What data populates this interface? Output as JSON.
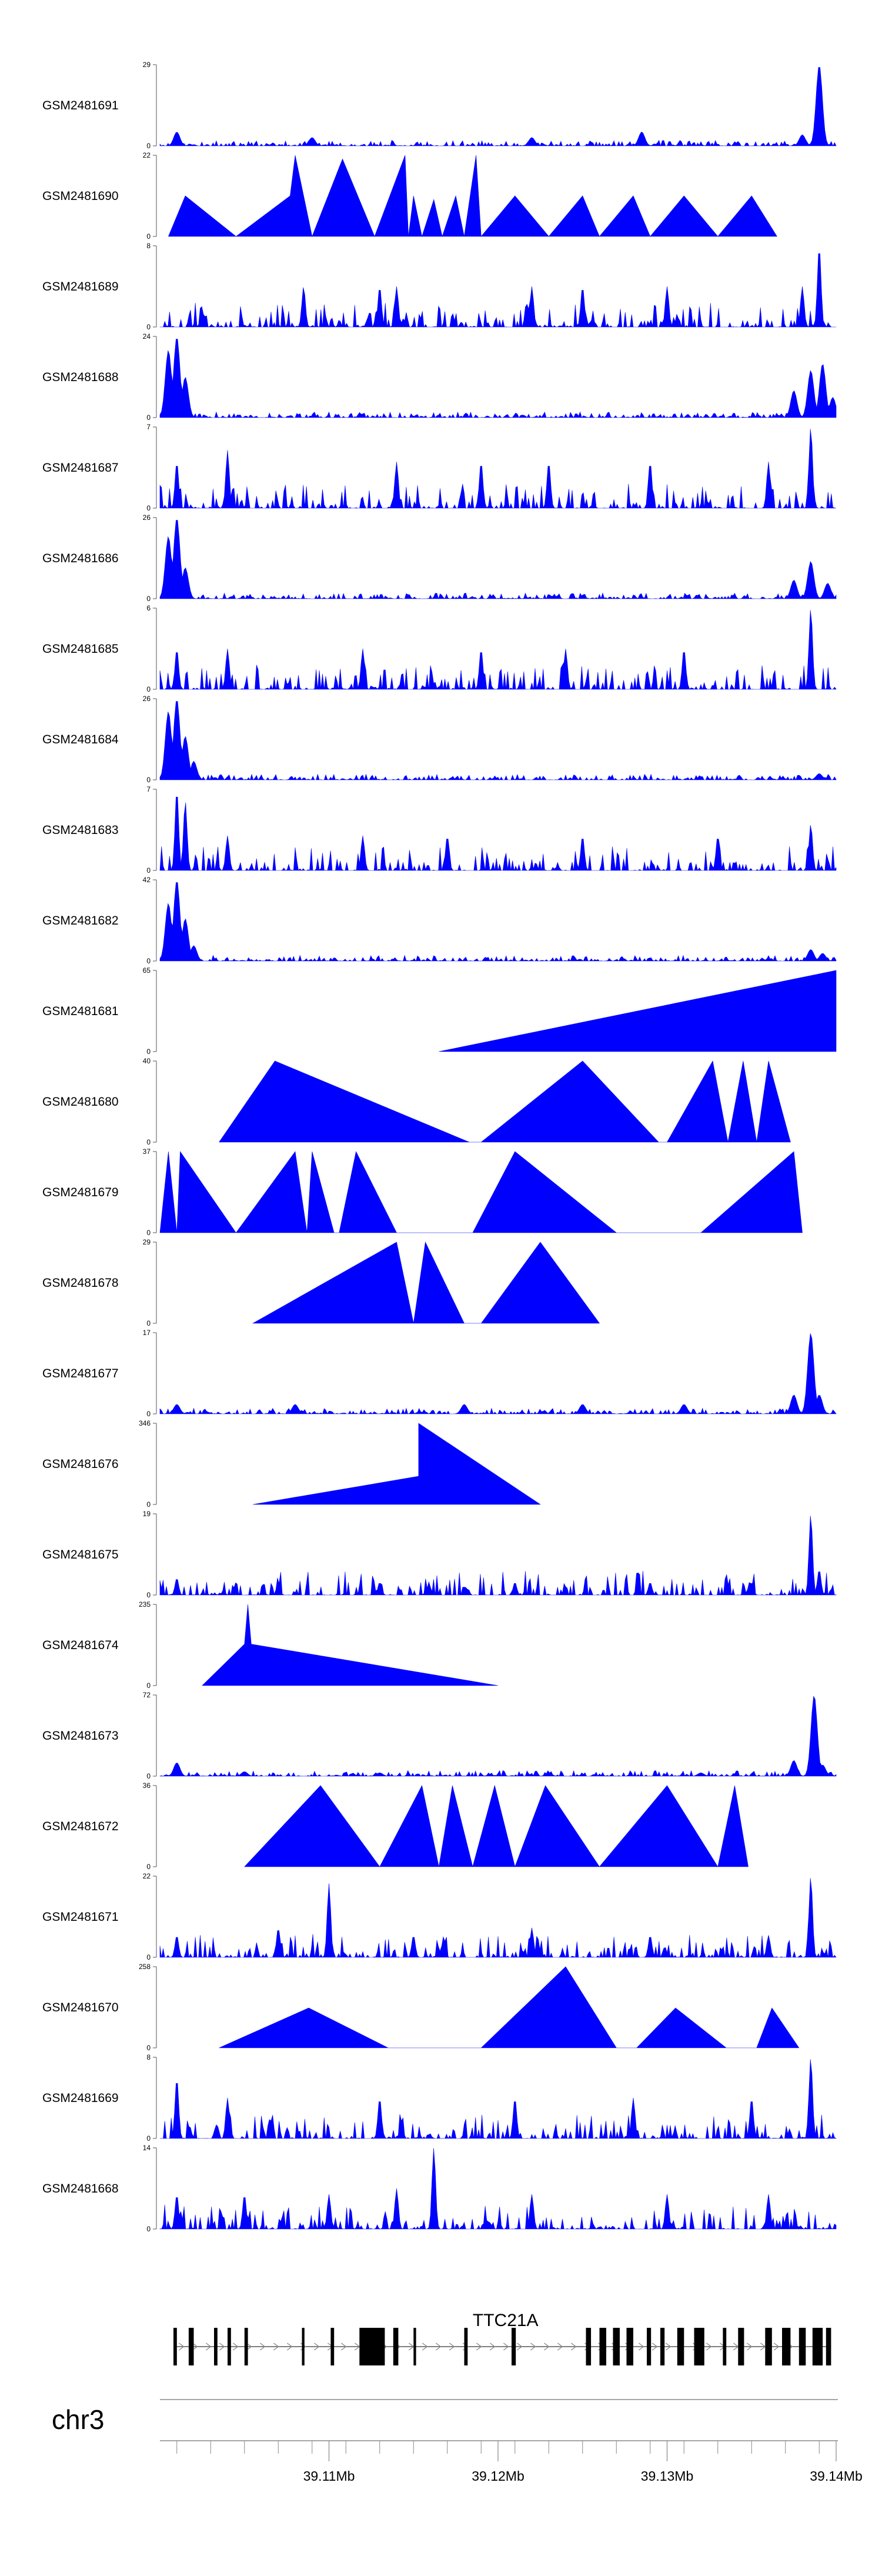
{
  "chart_data": {
    "type": "area",
    "layout": "stacked genome browser tracks",
    "fill_color": "#0000ff",
    "x_axis": {
      "chromosome": "chr3",
      "range": [
        39100000,
        39140000
      ],
      "ticks": [
        {
          "pos": 39110000,
          "label": "39.11Mb"
        },
        {
          "pos": 39120000,
          "label": "39.12Mb"
        },
        {
          "pos": 39130000,
          "label": "39.13Mb"
        },
        {
          "pos": 39140000,
          "label": "39.14Mb"
        }
      ]
    },
    "tracks": [
      {
        "name": "GSM2481691",
        "ymax": 29,
        "profile": "bump",
        "peaks": [
          [
            39101000,
            5
          ],
          [
            39109000,
            3
          ],
          [
            39122000,
            3
          ],
          [
            39128500,
            5
          ],
          [
            39138000,
            4
          ],
          [
            39139000,
            29
          ]
        ]
      },
      {
        "name": "GSM2481690",
        "ymax": 22,
        "profile": "triangles",
        "peaks": [
          [
            39100500,
            0
          ],
          [
            39101500,
            11
          ],
          [
            39104500,
            0
          ],
          [
            39107700,
            11
          ],
          [
            39108000,
            22
          ],
          [
            39109000,
            0
          ],
          [
            39110800,
            21
          ],
          [
            39112700,
            0
          ],
          [
            39114500,
            22
          ],
          [
            39114700,
            0
          ],
          [
            39115000,
            11
          ],
          [
            39115500,
            0
          ],
          [
            39116200,
            10
          ],
          [
            39116700,
            0
          ],
          [
            39117500,
            11
          ],
          [
            39118000,
            0
          ],
          [
            39118700,
            22
          ],
          [
            39119000,
            0
          ],
          [
            39121000,
            11
          ],
          [
            39123000,
            0
          ],
          [
            39125000,
            11
          ],
          [
            39126000,
            0
          ],
          [
            39128000,
            11
          ],
          [
            39129000,
            0
          ],
          [
            39131000,
            11
          ],
          [
            39133000,
            0
          ],
          [
            39135000,
            11
          ],
          [
            39136500,
            0
          ]
        ]
      },
      {
        "name": "GSM2481689",
        "ymax": 8,
        "profile": "spiky",
        "peaks": [
          [
            39108500,
            4
          ],
          [
            39113000,
            4
          ],
          [
            39114000,
            4
          ],
          [
            39122000,
            4
          ],
          [
            39125000,
            4
          ],
          [
            39130000,
            4
          ],
          [
            39138000,
            4
          ],
          [
            39139000,
            8
          ]
        ]
      },
      {
        "name": "GSM2481688",
        "ymax": 24,
        "profile": "bump",
        "peaks": [
          [
            39100500,
            20
          ],
          [
            39101000,
            24
          ],
          [
            39101500,
            12
          ],
          [
            39137500,
            8
          ],
          [
            39138500,
            14
          ],
          [
            39139200,
            16
          ],
          [
            39139800,
            6
          ]
        ]
      },
      {
        "name": "GSM2481687",
        "ymax": 7,
        "profile": "spiky",
        "peaks": [
          [
            39101000,
            4
          ],
          [
            39104000,
            5
          ],
          [
            39114000,
            4
          ],
          [
            39119000,
            4
          ],
          [
            39123000,
            4
          ],
          [
            39129000,
            4
          ],
          [
            39136000,
            4
          ],
          [
            39138500,
            7
          ]
        ]
      },
      {
        "name": "GSM2481686",
        "ymax": 26,
        "profile": "bump",
        "peaks": [
          [
            39100500,
            20
          ],
          [
            39101000,
            26
          ],
          [
            39101500,
            10
          ],
          [
            39137500,
            6
          ],
          [
            39138500,
            12
          ],
          [
            39139500,
            5
          ]
        ]
      },
      {
        "name": "GSM2481685",
        "ymax": 6,
        "profile": "spiky",
        "peaks": [
          [
            39101000,
            3
          ],
          [
            39104000,
            3
          ],
          [
            39112000,
            3
          ],
          [
            39119000,
            3
          ],
          [
            39124000,
            3
          ],
          [
            39131000,
            3
          ],
          [
            39138500,
            6
          ]
        ]
      },
      {
        "name": "GSM2481684",
        "ymax": 26,
        "profile": "bump",
        "peaks": [
          [
            39100500,
            22
          ],
          [
            39101000,
            26
          ],
          [
            39101500,
            14
          ],
          [
            39102000,
            6
          ],
          [
            39139000,
            2
          ]
        ]
      },
      {
        "name": "GSM2481683",
        "ymax": 7,
        "profile": "spiky",
        "peaks": [
          [
            39101000,
            7
          ],
          [
            39101500,
            6
          ],
          [
            39104000,
            3
          ],
          [
            39112000,
            3
          ],
          [
            39117000,
            3
          ],
          [
            39125000,
            3
          ],
          [
            39133000,
            3
          ],
          [
            39138500,
            4
          ]
        ]
      },
      {
        "name": "GSM2481682",
        "ymax": 42,
        "profile": "bump",
        "peaks": [
          [
            39100500,
            30
          ],
          [
            39101000,
            42
          ],
          [
            39101500,
            22
          ],
          [
            39102000,
            8
          ],
          [
            39138500,
            6
          ],
          [
            39139200,
            4
          ]
        ]
      },
      {
        "name": "GSM2481681",
        "ymax": 65,
        "profile": "triangles",
        "peaks": [
          [
            39116500,
            0
          ],
          [
            39140000,
            65
          ]
        ]
      },
      {
        "name": "GSM2481680",
        "ymax": 40,
        "profile": "triangles",
        "peaks": [
          [
            39103500,
            0
          ],
          [
            39106800,
            40
          ],
          [
            39118300,
            0
          ],
          [
            39119000,
            0
          ],
          [
            39125000,
            40
          ],
          [
            39129500,
            0
          ],
          [
            39130000,
            0
          ],
          [
            39132700,
            40
          ],
          [
            39133600,
            0
          ],
          [
            39134500,
            40
          ],
          [
            39135300,
            0
          ],
          [
            39136000,
            40
          ],
          [
            39137300,
            0
          ]
        ]
      },
      {
        "name": "GSM2481679",
        "ymax": 37,
        "profile": "triangles",
        "peaks": [
          [
            39100000,
            0
          ],
          [
            39100500,
            37
          ],
          [
            39101000,
            0
          ],
          [
            39101200,
            37
          ],
          [
            39104500,
            0
          ],
          [
            39108000,
            37
          ],
          [
            39108700,
            0
          ],
          [
            39109000,
            37
          ],
          [
            39110300,
            0
          ],
          [
            39110600,
            0
          ],
          [
            39111600,
            37
          ],
          [
            39114000,
            0
          ],
          [
            39118500,
            0
          ],
          [
            39121000,
            37
          ],
          [
            39127000,
            0
          ],
          [
            39132000,
            0
          ],
          [
            39137500,
            37
          ],
          [
            39138000,
            0
          ]
        ]
      },
      {
        "name": "GSM2481678",
        "ymax": 29,
        "profile": "triangles",
        "peaks": [
          [
            39105500,
            0
          ],
          [
            39114000,
            29
          ],
          [
            39115000,
            0
          ],
          [
            39115700,
            29
          ],
          [
            39118000,
            0
          ],
          [
            39119000,
            0
          ],
          [
            39122500,
            29
          ],
          [
            39126000,
            0
          ]
        ]
      },
      {
        "name": "GSM2481677",
        "ymax": 17,
        "profile": "bump",
        "peaks": [
          [
            39101000,
            2
          ],
          [
            39108000,
            2
          ],
          [
            39118000,
            2
          ],
          [
            39125000,
            2
          ],
          [
            39131000,
            2
          ],
          [
            39137500,
            4
          ],
          [
            39138500,
            17
          ],
          [
            39139000,
            4
          ]
        ]
      },
      {
        "name": "GSM2481676",
        "ymax": 346,
        "profile": "triangles",
        "peaks": [
          [
            39105500,
            0
          ],
          [
            39115300,
            120
          ],
          [
            39115300,
            346
          ],
          [
            39122500,
            0
          ]
        ]
      },
      {
        "name": "GSM2481675",
        "ymax": 19,
        "profile": "spiky",
        "peaks": [
          [
            39101000,
            4
          ],
          [
            39107000,
            3
          ],
          [
            39113000,
            3
          ],
          [
            39121000,
            3
          ],
          [
            39129000,
            3
          ],
          [
            39135000,
            3
          ],
          [
            39138500,
            19
          ],
          [
            39139000,
            6
          ]
        ]
      },
      {
        "name": "GSM2481674",
        "ymax": 235,
        "profile": "triangles",
        "peaks": [
          [
            39102500,
            0
          ],
          [
            39105000,
            120
          ],
          [
            39105200,
            235
          ],
          [
            39105400,
            120
          ],
          [
            39120000,
            0
          ]
        ]
      },
      {
        "name": "GSM2481673",
        "ymax": 72,
        "profile": "bump",
        "peaks": [
          [
            39101000,
            12
          ],
          [
            39105000,
            4
          ],
          [
            39113000,
            3
          ],
          [
            39123000,
            3
          ],
          [
            39132000,
            3
          ],
          [
            39137500,
            14
          ],
          [
            39138700,
            72
          ],
          [
            39139200,
            10
          ]
        ]
      },
      {
        "name": "GSM2481672",
        "ymax": 36,
        "profile": "triangles",
        "peaks": [
          [
            39105000,
            0
          ],
          [
            39109500,
            36
          ],
          [
            39113000,
            0
          ],
          [
            39115500,
            36
          ],
          [
            39116500,
            0
          ],
          [
            39117300,
            36
          ],
          [
            39118500,
            0
          ],
          [
            39119800,
            36
          ],
          [
            39121000,
            0
          ],
          [
            39122800,
            36
          ],
          [
            39126000,
            0
          ],
          [
            39130000,
            36
          ],
          [
            39133000,
            0
          ],
          [
            39134000,
            36
          ],
          [
            39134800,
            0
          ]
        ]
      },
      {
        "name": "GSM2481671",
        "ymax": 22,
        "profile": "spiky",
        "peaks": [
          [
            39101000,
            6
          ],
          [
            39107000,
            8
          ],
          [
            39110000,
            20
          ],
          [
            39115000,
            6
          ],
          [
            39122000,
            8
          ],
          [
            39129000,
            6
          ],
          [
            39136000,
            6
          ],
          [
            39138500,
            22
          ]
        ]
      },
      {
        "name": "GSM2481670",
        "ymax": 258,
        "profile": "triangles",
        "peaks": [
          [
            39103500,
            0
          ],
          [
            39108800,
            127
          ],
          [
            39113500,
            0
          ],
          [
            39119000,
            0
          ],
          [
            39124000,
            258
          ],
          [
            39127000,
            0
          ],
          [
            39128200,
            0
          ],
          [
            39130500,
            127
          ],
          [
            39133500,
            0
          ],
          [
            39135300,
            0
          ],
          [
            39136200,
            127
          ],
          [
            39137800,
            0
          ]
        ]
      },
      {
        "name": "GSM2481669",
        "ymax": 8,
        "profile": "spiky",
        "peaks": [
          [
            39101000,
            6
          ],
          [
            39104000,
            4
          ],
          [
            39113000,
            4
          ],
          [
            39121000,
            4
          ],
          [
            39128000,
            4
          ],
          [
            39135000,
            4
          ],
          [
            39138500,
            8
          ]
        ]
      },
      {
        "name": "GSM2481668",
        "ymax": 14,
        "profile": "spiky",
        "peaks": [
          [
            39101000,
            6
          ],
          [
            39105000,
            6
          ],
          [
            39110000,
            6
          ],
          [
            39114000,
            7
          ],
          [
            39116200,
            14
          ],
          [
            39122000,
            6
          ],
          [
            39130000,
            6
          ],
          [
            39136000,
            6
          ]
        ]
      }
    ],
    "gene_track": {
      "label": "TTC21A",
      "start": 39100800,
      "end": 39139700,
      "exons": [
        [
          39100800,
          39101000
        ],
        [
          39101700,
          39102000
        ],
        [
          39103200,
          39103400
        ],
        [
          39104000,
          39104200
        ],
        [
          39105000,
          39105200
        ],
        [
          39108400,
          39108550
        ],
        [
          39110100,
          39110300
        ],
        [
          39111800,
          39113300
        ],
        [
          39113800,
          39114100
        ],
        [
          39115000,
          39115150
        ],
        [
          39118000,
          39118200
        ],
        [
          39120800,
          39121050
        ],
        [
          39125200,
          39125500
        ],
        [
          39126000,
          39126400
        ],
        [
          39126800,
          39127200
        ],
        [
          39127600,
          39128000
        ],
        [
          39128800,
          39129050
        ],
        [
          39129600,
          39129850
        ],
        [
          39130600,
          39131000
        ],
        [
          39131600,
          39132200
        ],
        [
          39133300,
          39133500
        ],
        [
          39134200,
          39134550
        ],
        [
          39135800,
          39136200
        ],
        [
          39136800,
          39137300
        ],
        [
          39137800,
          39138200
        ],
        [
          39138600,
          39139200
        ],
        [
          39139400,
          39139700
        ]
      ]
    }
  }
}
